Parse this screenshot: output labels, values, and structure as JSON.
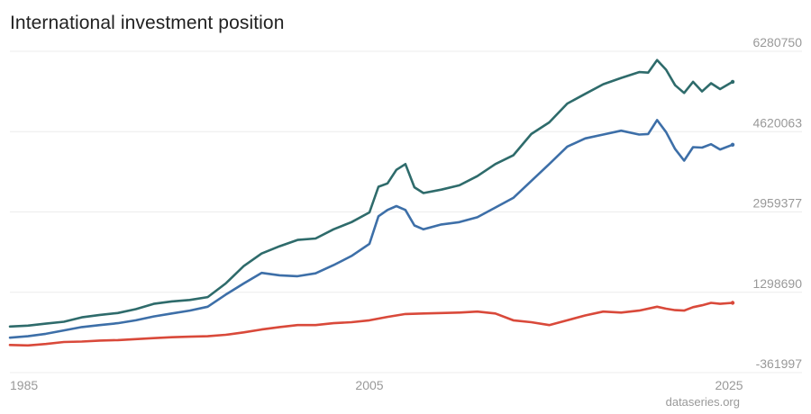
{
  "title": "International investment position",
  "credit": "dataseries.org",
  "chart_data": {
    "type": "line",
    "title": "International investment position",
    "x_ticks": [
      "1985",
      "2005",
      "2025"
    ],
    "y_ticks": [
      "6280750",
      "4620063",
      "2959377",
      "1298690",
      "-361997"
    ],
    "ylim": [
      -361997,
      6280750
    ],
    "xlim": [
      1985.0,
      2025.6
    ],
    "grid": "horizontal",
    "legend": "none",
    "series": [
      {
        "color": "#2e6b6b",
        "points": [
          [
            1985.0,
            590000
          ],
          [
            1986.0,
            610000
          ],
          [
            1987.0,
            650000
          ],
          [
            1988.0,
            690000
          ],
          [
            1989.0,
            780000
          ],
          [
            1990.0,
            830000
          ],
          [
            1991.0,
            870000
          ],
          [
            1992.0,
            950000
          ],
          [
            1993.0,
            1060000
          ],
          [
            1994.0,
            1110000
          ],
          [
            1995.0,
            1140000
          ],
          [
            1996.0,
            1200000
          ],
          [
            1997.0,
            1480000
          ],
          [
            1998.0,
            1840000
          ],
          [
            1999.0,
            2100000
          ],
          [
            2000.0,
            2250000
          ],
          [
            2001.0,
            2380000
          ],
          [
            2002.0,
            2410000
          ],
          [
            2003.0,
            2600000
          ],
          [
            2004.0,
            2750000
          ],
          [
            2005.0,
            2950000
          ],
          [
            2005.5,
            3480000
          ],
          [
            2006.0,
            3550000
          ],
          [
            2006.5,
            3830000
          ],
          [
            2007.0,
            3950000
          ],
          [
            2007.5,
            3470000
          ],
          [
            2008.0,
            3350000
          ],
          [
            2009.0,
            3420000
          ],
          [
            2010.0,
            3510000
          ],
          [
            2011.0,
            3700000
          ],
          [
            2012.0,
            3950000
          ],
          [
            2013.0,
            4130000
          ],
          [
            2014.0,
            4570000
          ],
          [
            2015.0,
            4810000
          ],
          [
            2016.0,
            5200000
          ],
          [
            2017.0,
            5400000
          ],
          [
            2018.0,
            5600000
          ],
          [
            2019.0,
            5730000
          ],
          [
            2020.0,
            5850000
          ],
          [
            2020.5,
            5840000
          ],
          [
            2021.0,
            6100000
          ],
          [
            2021.5,
            5900000
          ],
          [
            2022.0,
            5580000
          ],
          [
            2022.5,
            5420000
          ],
          [
            2023.0,
            5650000
          ],
          [
            2023.5,
            5450000
          ],
          [
            2024.0,
            5620000
          ],
          [
            2024.5,
            5500000
          ],
          [
            2025.2,
            5650000
          ]
        ]
      },
      {
        "color": "#3d6fa8",
        "points": [
          [
            1985.0,
            360000
          ],
          [
            1986.0,
            390000
          ],
          [
            1987.0,
            440000
          ],
          [
            1988.0,
            510000
          ],
          [
            1989.0,
            580000
          ],
          [
            1990.0,
            620000
          ],
          [
            1991.0,
            660000
          ],
          [
            1992.0,
            720000
          ],
          [
            1993.0,
            800000
          ],
          [
            1994.0,
            860000
          ],
          [
            1995.0,
            920000
          ],
          [
            1996.0,
            1000000
          ],
          [
            1997.0,
            1250000
          ],
          [
            1998.0,
            1480000
          ],
          [
            1999.0,
            1700000
          ],
          [
            2000.0,
            1650000
          ],
          [
            2001.0,
            1630000
          ],
          [
            2002.0,
            1690000
          ],
          [
            2003.0,
            1860000
          ],
          [
            2004.0,
            2050000
          ],
          [
            2005.0,
            2300000
          ],
          [
            2005.5,
            2870000
          ],
          [
            2006.0,
            3000000
          ],
          [
            2006.5,
            3080000
          ],
          [
            2007.0,
            3000000
          ],
          [
            2007.5,
            2680000
          ],
          [
            2008.0,
            2600000
          ],
          [
            2009.0,
            2700000
          ],
          [
            2010.0,
            2750000
          ],
          [
            2011.0,
            2850000
          ],
          [
            2012.0,
            3050000
          ],
          [
            2013.0,
            3250000
          ],
          [
            2014.0,
            3600000
          ],
          [
            2015.0,
            3950000
          ],
          [
            2016.0,
            4310000
          ],
          [
            2017.0,
            4480000
          ],
          [
            2018.0,
            4560000
          ],
          [
            2019.0,
            4640000
          ],
          [
            2020.0,
            4560000
          ],
          [
            2020.5,
            4570000
          ],
          [
            2021.0,
            4860000
          ],
          [
            2021.5,
            4610000
          ],
          [
            2022.0,
            4260000
          ],
          [
            2022.5,
            4020000
          ],
          [
            2023.0,
            4300000
          ],
          [
            2023.5,
            4290000
          ],
          [
            2024.0,
            4360000
          ],
          [
            2024.5,
            4250000
          ],
          [
            2025.2,
            4350000
          ]
        ]
      },
      {
        "color": "#d9493a",
        "points": [
          [
            1985.0,
            210000
          ],
          [
            1986.0,
            200000
          ],
          [
            1987.0,
            230000
          ],
          [
            1988.0,
            270000
          ],
          [
            1989.0,
            280000
          ],
          [
            1990.0,
            300000
          ],
          [
            1991.0,
            310000
          ],
          [
            1992.0,
            330000
          ],
          [
            1993.0,
            350000
          ],
          [
            1994.0,
            370000
          ],
          [
            1995.0,
            380000
          ],
          [
            1996.0,
            390000
          ],
          [
            1997.0,
            420000
          ],
          [
            1998.0,
            470000
          ],
          [
            1999.0,
            530000
          ],
          [
            2000.0,
            580000
          ],
          [
            2001.0,
            620000
          ],
          [
            2002.0,
            620000
          ],
          [
            2003.0,
            660000
          ],
          [
            2004.0,
            680000
          ],
          [
            2005.0,
            720000
          ],
          [
            2006.0,
            790000
          ],
          [
            2007.0,
            850000
          ],
          [
            2008.0,
            860000
          ],
          [
            2009.0,
            870000
          ],
          [
            2010.0,
            880000
          ],
          [
            2011.0,
            900000
          ],
          [
            2012.0,
            860000
          ],
          [
            2013.0,
            720000
          ],
          [
            2014.0,
            680000
          ],
          [
            2015.0,
            620000
          ],
          [
            2016.0,
            720000
          ],
          [
            2017.0,
            820000
          ],
          [
            2018.0,
            900000
          ],
          [
            2019.0,
            880000
          ],
          [
            2020.0,
            920000
          ],
          [
            2021.0,
            1000000
          ],
          [
            2021.5,
            960000
          ],
          [
            2022.0,
            930000
          ],
          [
            2022.5,
            920000
          ],
          [
            2023.0,
            990000
          ],
          [
            2023.5,
            1030000
          ],
          [
            2024.0,
            1080000
          ],
          [
            2024.5,
            1060000
          ],
          [
            2025.2,
            1080000
          ]
        ]
      }
    ]
  }
}
